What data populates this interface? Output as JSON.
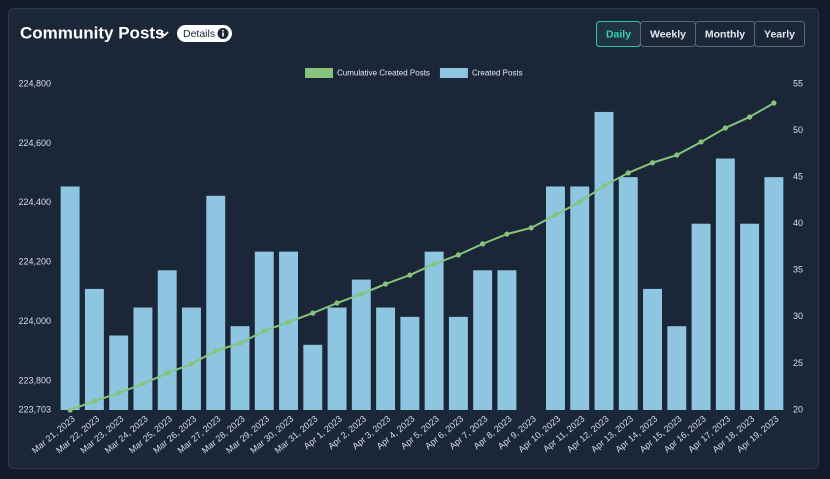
{
  "header": {
    "title": "Community Posts",
    "details": "Details",
    "tabs": [
      "Daily",
      "Weekly",
      "Monthly",
      "Yearly"
    ],
    "active_tab": 0
  },
  "chart_data": {
    "type": "bar-line",
    "categories": [
      "Mar 21, 2023",
      "Mar 22, 2023",
      "Mar 23, 2023",
      "Mar 24, 2023",
      "Mar 25, 2023",
      "Mar 26, 2023",
      "Mar 27, 2023",
      "Mar 28, 2023",
      "Mar 29, 2023",
      "Mar 30, 2023",
      "Mar 31, 2023",
      "Apr 1, 2023",
      "Apr 2, 2023",
      "Apr 3, 2023",
      "Apr 4, 2023",
      "Apr 5, 2023",
      "Apr 6, 2023",
      "Apr 7, 2023",
      "Apr 8, 2023",
      "Apr 9, 2023",
      "Apr 10, 2023",
      "Apr 11, 2023",
      "Apr 12, 2023",
      "Apr 13, 2023",
      "Apr 14, 2023",
      "Apr 15, 2023",
      "Apr 16, 2023",
      "Apr 17, 2023",
      "Apr 18, 2023",
      "Apr 19, 2023"
    ],
    "series": [
      {
        "name": "Cumulative Created Posts",
        "type": "line",
        "axis": "y",
        "color": "#86c47c",
        "values": [
          223703,
          223733,
          223760,
          223791,
          223827,
          223858,
          223902,
          223928,
          223969,
          223999,
          224029,
          224063,
          224093,
          224127,
          224157,
          224194,
          224225,
          224262,
          224295,
          224316,
          224359,
          224403,
          224457,
          224501,
          224535,
          224561,
          224605,
          224652,
          224689,
          224736
        ]
      },
      {
        "name": "Created Posts",
        "type": "bar",
        "axis": "y2",
        "color": "#8ec5e0",
        "values": [
          44,
          33,
          28,
          31,
          35,
          31,
          43,
          29,
          37,
          37,
          27,
          31,
          34,
          31,
          30,
          37,
          30,
          35,
          35,
          null,
          44,
          44,
          52,
          45,
          33,
          29,
          40,
          47,
          40,
          45
        ]
      }
    ],
    "ylim": [
      223703,
      224800
    ],
    "yticks": [
      {
        "value": 223703,
        "label": "223,703"
      },
      {
        "value": 223800,
        "label": "223,800"
      },
      {
        "value": 224000,
        "label": "224,000"
      },
      {
        "value": 224200,
        "label": "224,200"
      },
      {
        "value": 224400,
        "label": "224,400"
      },
      {
        "value": 224600,
        "label": "224,600"
      },
      {
        "value": 224800,
        "label": "224,800"
      }
    ],
    "y2lim": [
      20,
      55
    ],
    "y2ticks": [
      20,
      25,
      30,
      35,
      40,
      45,
      50,
      55
    ],
    "legend": "top"
  }
}
